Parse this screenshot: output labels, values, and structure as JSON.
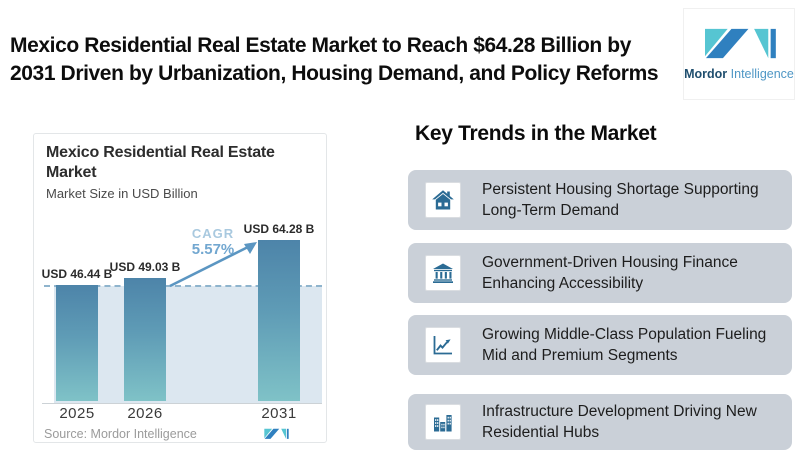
{
  "header": {
    "title_line1": "Mexico Residential Real Estate Market to Reach $64.28 Billion by",
    "title_line2": "2031 Driven by Urbanization, Housing Demand, and Policy Reforms",
    "logo": {
      "brand_bold": "Mordor",
      "brand_light": "Intelligence"
    }
  },
  "chart_card": {
    "title_line1": "Mexico Residential Real Estate",
    "title_line2": "Market",
    "subtitle": "Market Size in USD Billion",
    "source": "Source: Mordor Intelligence"
  },
  "chart_data": {
    "type": "bar",
    "title": "Mexico Residential Real Estate Market",
    "subtitle": "Market Size in USD Billion",
    "unit": "USD Billion",
    "categories": [
      "2025",
      "2026",
      "2031"
    ],
    "values": [
      46.44,
      49.03,
      64.28
    ],
    "bar_labels": [
      "USD 46.44 B",
      "USD 49.03 B",
      "USD 64.28 B"
    ],
    "cagr_label": "CAGR",
    "cagr_value": "5.57%",
    "ylim": [
      0,
      70
    ],
    "grid": false,
    "annotations": [
      "dashed reference line at 2025 level",
      "growth arrow from 2026 to 2031"
    ],
    "colors": {
      "bar_top": "#4d84a9",
      "bar_bottom": "#7fc2c7",
      "band_fill": "#dce7f0",
      "dashed_line": "#8fb4cd",
      "arrow": "#5b96c2"
    }
  },
  "trends": {
    "heading": "Key Trends in the Market",
    "items": [
      {
        "icon": "house-icon",
        "text": "Persistent Housing Shortage Supporting Long-Term Demand"
      },
      {
        "icon": "bank-icon",
        "text": "Government-Driven Housing Finance Enhancing Accessibility"
      },
      {
        "icon": "growth-chart-icon",
        "text": "Growing Middle-Class Population Fueling Mid and Premium Segments"
      },
      {
        "icon": "buildings-icon",
        "text": "Infrastructure Development Driving New Residential Hubs"
      }
    ]
  }
}
